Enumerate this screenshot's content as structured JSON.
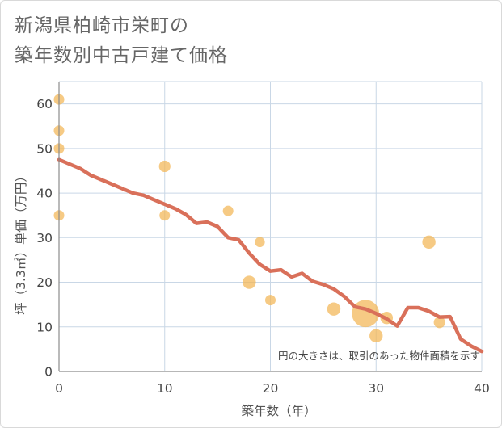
{
  "title": {
    "line1": "新潟県柏崎市栄町の",
    "line2": "築年数別中古戸建て価格"
  },
  "chart_data": {
    "type": "scatter+line",
    "xlabel": "築年数（年）",
    "ylabel": "坪（3.3㎡）単価（万円）",
    "xlim": [
      0,
      40
    ],
    "ylim": [
      0,
      65
    ],
    "xticks": [
      0,
      10,
      20,
      30,
      40
    ],
    "yticks": [
      0,
      10,
      20,
      30,
      40,
      50,
      60
    ],
    "grid": true,
    "annotation": "円の大きさは、取引のあった物件面積を示す",
    "colors": {
      "bubble": "#f2b654",
      "line": "#d9705a",
      "grid": "#c9d7e6",
      "axis": "#8c8c8c",
      "tick_text": "#444444",
      "label_text": "#555555"
    },
    "scatter": [
      {
        "x": 0,
        "y": 61,
        "size": 1.0
      },
      {
        "x": 0,
        "y": 54,
        "size": 1.0
      },
      {
        "x": 0,
        "y": 50,
        "size": 1.0
      },
      {
        "x": 0,
        "y": 35,
        "size": 1.0
      },
      {
        "x": 10,
        "y": 46,
        "size": 1.2
      },
      {
        "x": 10,
        "y": 35,
        "size": 1.0
      },
      {
        "x": 16,
        "y": 36,
        "size": 1.0
      },
      {
        "x": 19,
        "y": 29,
        "size": 0.9
      },
      {
        "x": 18,
        "y": 20,
        "size": 1.6
      },
      {
        "x": 20,
        "y": 16,
        "size": 1.0
      },
      {
        "x": 26,
        "y": 14,
        "size": 1.6
      },
      {
        "x": 29,
        "y": 13,
        "size": 4.0
      },
      {
        "x": 30,
        "y": 8,
        "size": 1.6
      },
      {
        "x": 31,
        "y": 12,
        "size": 1.4
      },
      {
        "x": 35,
        "y": 29,
        "size": 1.6
      },
      {
        "x": 36,
        "y": 11,
        "size": 1.2
      }
    ],
    "line": {
      "x": [
        0,
        1,
        2,
        3,
        4,
        5,
        6,
        7,
        8,
        9,
        10,
        11,
        12,
        13,
        14,
        15,
        16,
        17,
        18,
        19,
        20,
        21,
        22,
        23,
        24,
        25,
        26,
        27,
        28,
        29,
        30,
        31,
        32,
        33,
        34,
        35,
        36,
        37,
        38,
        39,
        40
      ],
      "y": [
        47.5,
        46.5,
        45.5,
        44,
        43,
        42,
        41,
        40,
        39.5,
        38.5,
        37.5,
        36.5,
        35.2,
        33.2,
        33.5,
        32.5,
        30,
        29.5,
        26.5,
        24,
        22.5,
        22.8,
        21.2,
        22,
        20.2,
        19.5,
        18.5,
        16.8,
        14.5,
        14,
        13,
        11.8,
        10.2,
        14.3,
        14.3,
        13.5,
        12.2,
        12.3,
        7.3,
        5.7,
        4.5
      ]
    }
  }
}
